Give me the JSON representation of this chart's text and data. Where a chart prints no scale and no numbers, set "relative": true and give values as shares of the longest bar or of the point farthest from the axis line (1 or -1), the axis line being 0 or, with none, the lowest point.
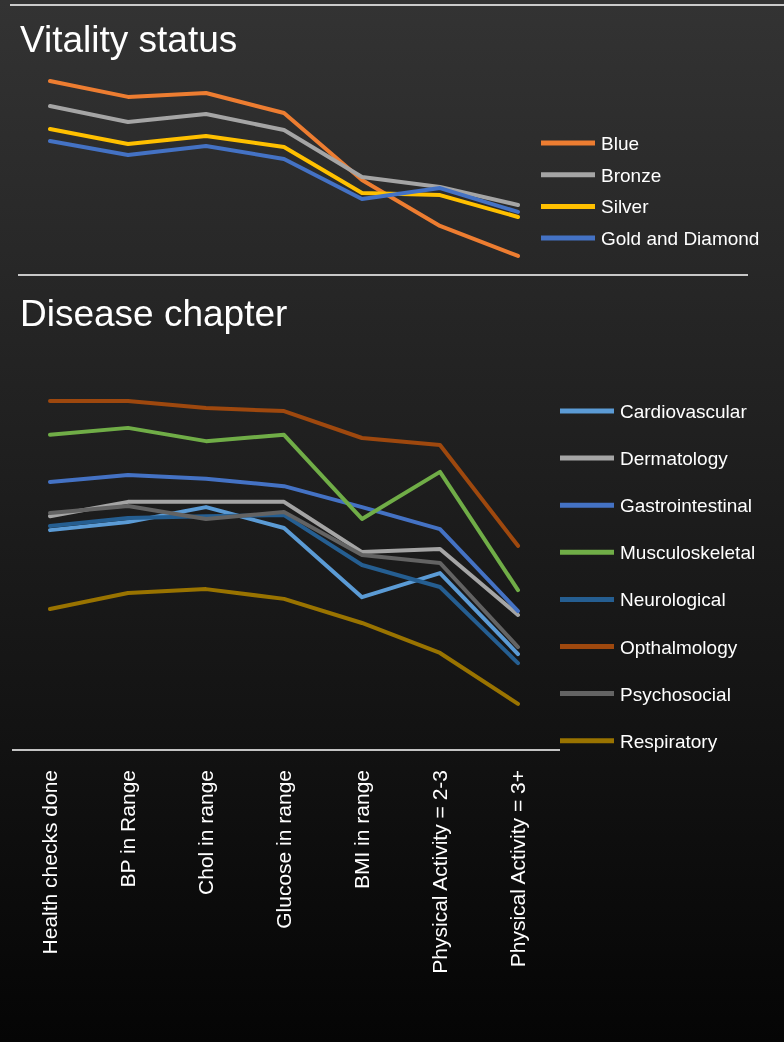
{
  "chart_data": [
    {
      "type": "line",
      "title": "Vitality status",
      "relative": true,
      "legend": "right",
      "tick_labels": false,
      "categories": [
        null,
        null,
        null,
        null,
        null,
        null,
        null
      ],
      "series": [
        {
          "name": "Blue",
          "color": "#ed7d31",
          "values": [
            1,
            0.918,
            0.938,
            0.835,
            0.49,
            0.253,
            0.098
          ]
        },
        {
          "name": "Bronze",
          "color": "#a5a5a5",
          "values": [
            0.871,
            0.789,
            0.83,
            0.747,
            0.505,
            0.454,
            0.361
          ]
        },
        {
          "name": "Silver",
          "color": "#ffc000",
          "values": [
            0.753,
            0.675,
            0.716,
            0.66,
            0.423,
            0.412,
            0.299
          ]
        },
        {
          "name": "Gold and Diamond",
          "color": "#4472c4",
          "values": [
            0.691,
            0.619,
            0.665,
            0.598,
            0.392,
            0.448,
            0.325
          ]
        }
      ]
    },
    {
      "type": "line",
      "title": "Disease chapter",
      "relative": true,
      "legend": "right",
      "tick_labels": "x",
      "categories": [
        "Health checks done",
        "BP in Range",
        "Chol in range",
        "Glucose in range",
        "BMI in range",
        "Physical Activity = 2-3",
        "Physical Activity = 3+"
      ],
      "series": [
        {
          "name": "Cardiovascular",
          "color": "#5b9bd5",
          "values": [
            0.63,
            0.653,
            0.696,
            0.636,
            0.438,
            0.507,
            0.275
          ]
        },
        {
          "name": "Dermatology",
          "color": "#a5a5a5",
          "values": [
            0.67,
            0.711,
            0.711,
            0.711,
            0.567,
            0.576,
            0.387
          ]
        },
        {
          "name": "Gastrointestinal",
          "color": "#4472c4",
          "values": [
            0.768,
            0.788,
            0.777,
            0.756,
            0.696,
            0.633,
            0.398
          ]
        },
        {
          "name": "Musculoskeletal",
          "color": "#70ad47",
          "values": [
            0.903,
            0.923,
            0.885,
            0.903,
            0.662,
            0.797,
            0.458
          ]
        },
        {
          "name": "Neurological",
          "color": "#255e91",
          "values": [
            0.642,
            0.665,
            0.67,
            0.673,
            0.53,
            0.467,
            0.249
          ]
        },
        {
          "name": "Opthalmology",
          "color": "#9e480e",
          "values": [
            1,
            1,
            0.98,
            0.971,
            0.894,
            0.874,
            0.585
          ]
        },
        {
          "name": "Psychosocial",
          "color": "#636363",
          "values": [
            0.679,
            0.699,
            0.662,
            0.682,
            0.559,
            0.536,
            0.295
          ]
        },
        {
          "name": "Respiratory",
          "color": "#997300",
          "values": [
            0.404,
            0.45,
            0.461,
            0.433,
            0.364,
            0.278,
            0.132
          ]
        }
      ]
    }
  ]
}
